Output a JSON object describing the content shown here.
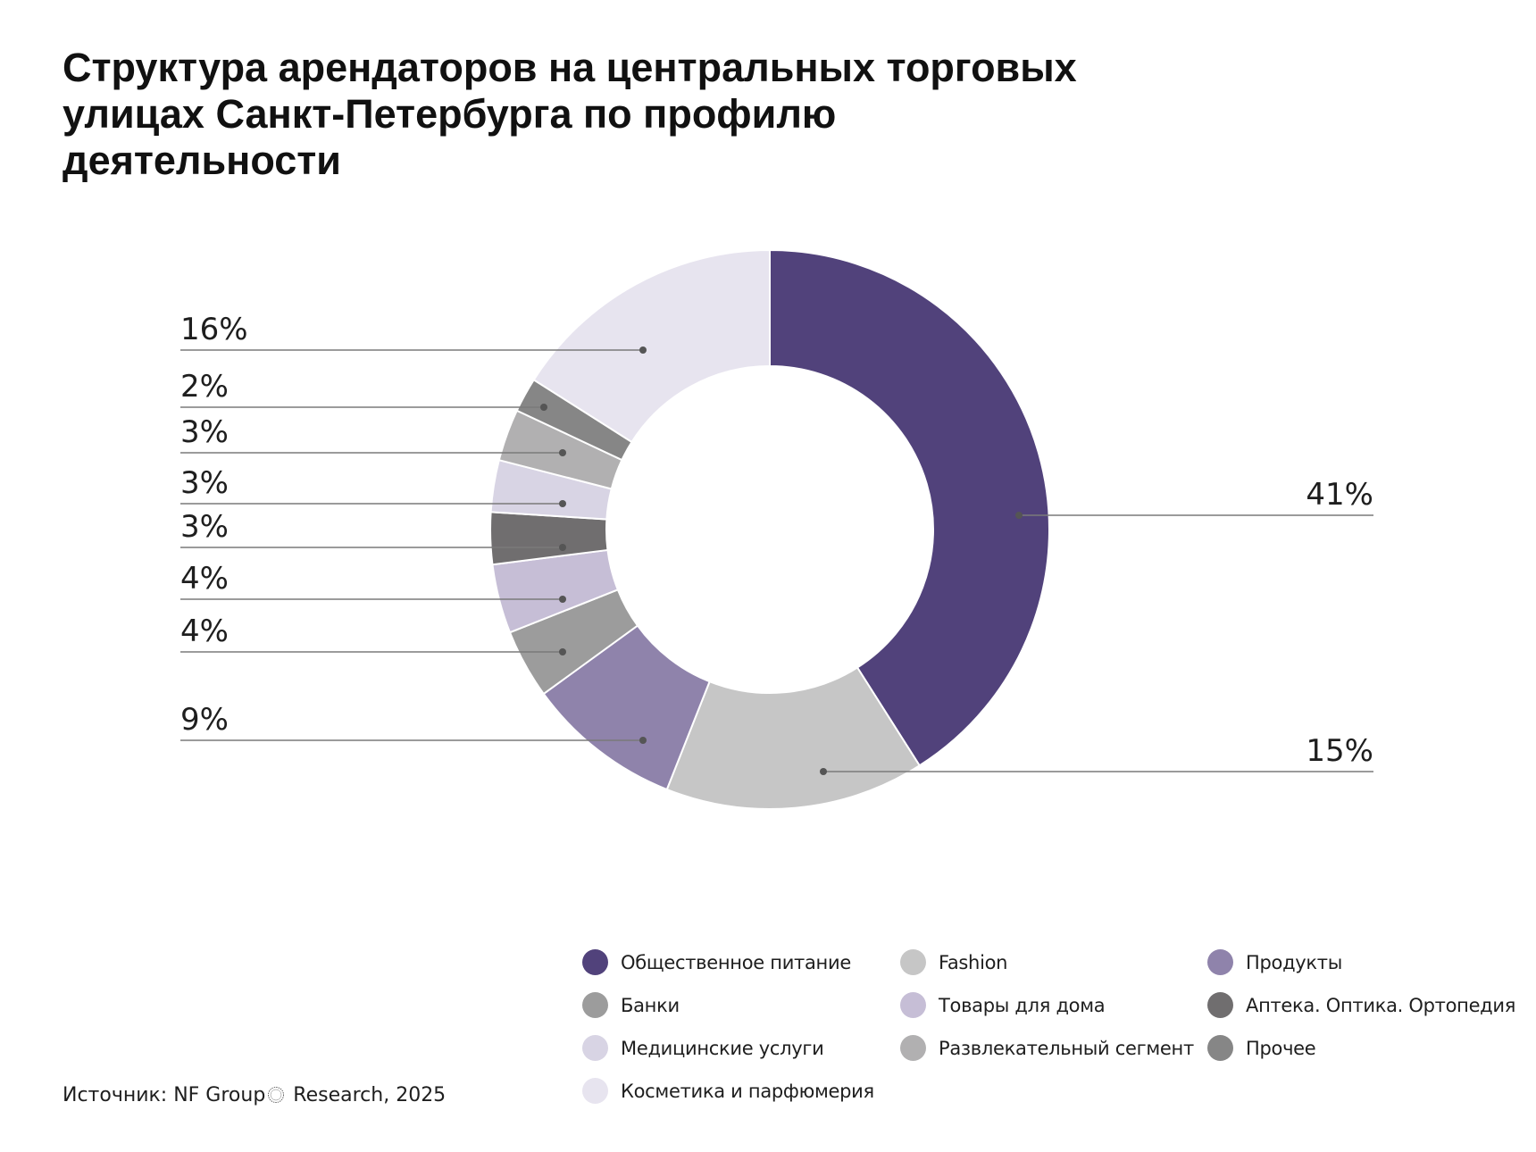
{
  "chart_data": {
    "type": "pie",
    "variant": "donut",
    "title": "Структура арендаторов на центральных торговых улицах Санкт-Петербурга по профилю деятельности",
    "title_lines": [
      "Структура арендаторов на центральных торговых",
      "улицах Санкт-Петербурга по профилю",
      "деятельности"
    ],
    "unit": "%",
    "slices": [
      {
        "name": "Общественное питание",
        "value": 41,
        "label": "41%",
        "color": "#51427b",
        "label_side": "right"
      },
      {
        "name": "Fashion",
        "value": 15,
        "label": "15%",
        "color": "#c6c6c6",
        "label_side": "right"
      },
      {
        "name": "Продукты",
        "value": 9,
        "label": "9%",
        "color": "#8f83ab",
        "label_side": "left"
      },
      {
        "name": "Банки",
        "value": 4,
        "label": "4%",
        "color": "#9c9c9c",
        "label_side": "left"
      },
      {
        "name": "Товары для дома",
        "value": 4,
        "label": "4%",
        "color": "#c6bed6",
        "label_side": "left"
      },
      {
        "name": "Аптека. Оптика. Ортопедия",
        "value": 3,
        "label": "3%",
        "color": "#706e6f",
        "label_side": "left"
      },
      {
        "name": "Медицинские услуги",
        "value": 3,
        "label": "3%",
        "color": "#d8d4e4",
        "label_side": "left"
      },
      {
        "name": "Развлекательный сегмент",
        "value": 3,
        "label": "3%",
        "color": "#b1b0b1",
        "label_side": "left"
      },
      {
        "name": "Прочее",
        "value": 2,
        "label": "2%",
        "color": "#868686",
        "label_side": "left"
      },
      {
        "name": "Косметика и парфюмерия",
        "value": 16,
        "label": "16%",
        "color": "#e7e4ef",
        "label_side": "left"
      }
    ],
    "legend": {
      "placement": "bottom-right",
      "items": [
        "Общественное питание",
        "Fashion",
        "Продукты",
        "Банки",
        "Товары для дома",
        "Аптека. Оптика. Ортопедия",
        "Медицинские услуги",
        "Развлекательный сегмент",
        "Прочее",
        "Косметика и парфюмерия"
      ]
    },
    "source": "Источник: NF Group",
    "source_suffix": "Research, 2025"
  },
  "colors": {
    "leader": "#7a7a7a",
    "dot": "#555555",
    "separator": "#ffffff"
  }
}
